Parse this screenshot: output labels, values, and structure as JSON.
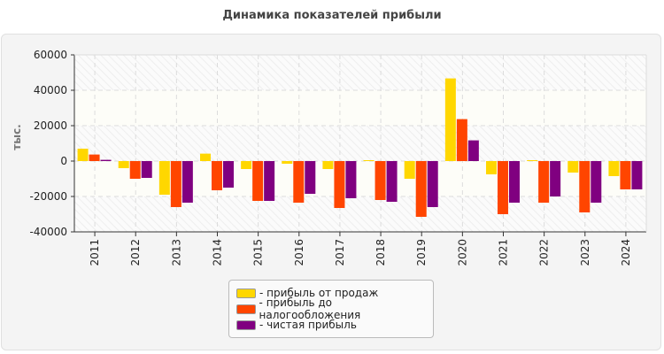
{
  "chart_data": {
    "type": "bar",
    "title": "Динамика показателей прибыли",
    "ylabel": "тыс.",
    "xlabel": "",
    "ylim": [
      -40000,
      60000
    ],
    "yticks": [
      -40000,
      -20000,
      0,
      20000,
      40000,
      60000
    ],
    "grid": true,
    "legend_position": "bottom",
    "categories": [
      "2011",
      "2012",
      "2013",
      "2014",
      "2015",
      "2016",
      "2017",
      "2018",
      "2019",
      "2020",
      "2021",
      "2022",
      "2023",
      "2024"
    ],
    "series": [
      {
        "name": "- прибыль от продаж",
        "color": "#FFD700",
        "values": [
          7000,
          -4000,
          -19000,
          4200,
          -4500,
          -1500,
          -4500,
          500,
          -10000,
          46700,
          -7500,
          500,
          -6500,
          -8500
        ]
      },
      {
        "name": "- прибыль до налогообложения",
        "color": "#FF4500",
        "values": [
          3700,
          -10000,
          -26000,
          -16500,
          -22500,
          -23500,
          -26500,
          -22000,
          -31500,
          23700,
          -30000,
          -23500,
          -29000,
          -16000
        ]
      },
      {
        "name": "- чистая прибыль",
        "color": "#800080",
        "values": [
          700,
          -9500,
          -23500,
          -15000,
          -22500,
          -18500,
          -21000,
          -23000,
          -26000,
          11700,
          -23500,
          -20000,
          -23500,
          -16000
        ]
      }
    ]
  }
}
